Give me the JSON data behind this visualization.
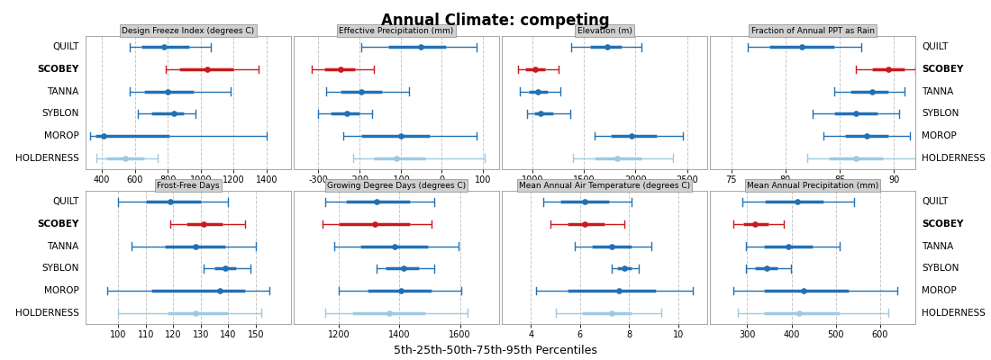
{
  "title": "Annual Climate: competing",
  "xlabel": "5th-25th-50th-75th-95th Percentiles",
  "sites": [
    "QUILT",
    "SCOBEY",
    "TANNA",
    "SYBLON",
    "MOROP",
    "HOLDERNESS"
  ],
  "site_bold": [
    false,
    true,
    false,
    false,
    false,
    false
  ],
  "panels": [
    {
      "title": "Design Freeze Index (degrees C)",
      "xlim": [
        300,
        1550
      ],
      "xticks": [
        400,
        600,
        800,
        1000,
        1200,
        1400
      ],
      "data": [
        {
          "p5": 570,
          "p25": 640,
          "p50": 780,
          "p75": 930,
          "p95": 1060
        },
        {
          "p5": 790,
          "p25": 870,
          "p50": 1040,
          "p75": 1200,
          "p95": 1350
        },
        {
          "p5": 570,
          "p25": 660,
          "p50": 800,
          "p75": 960,
          "p95": 1180
        },
        {
          "p5": 620,
          "p25": 700,
          "p50": 840,
          "p75": 900,
          "p95": 970
        },
        {
          "p5": 330,
          "p25": 365,
          "p50": 410,
          "p75": 810,
          "p95": 1400
        },
        {
          "p5": 370,
          "p25": 430,
          "p50": 545,
          "p75": 660,
          "p95": 740
        }
      ]
    },
    {
      "title": "Effective Precipitation (mm)",
      "xlim": [
        -360,
        140
      ],
      "xticks": [
        -300,
        -200,
        -100,
        0,
        100
      ],
      "data": [
        {
          "p5": -195,
          "p25": -130,
          "p50": -50,
          "p75": 10,
          "p95": 85
        },
        {
          "p5": -315,
          "p25": -285,
          "p50": -245,
          "p75": -210,
          "p95": -165
        },
        {
          "p5": -280,
          "p25": -245,
          "p50": -195,
          "p75": -145,
          "p95": -80
        },
        {
          "p5": -300,
          "p25": -270,
          "p50": -230,
          "p75": -200,
          "p95": -170
        },
        {
          "p5": -240,
          "p25": -195,
          "p50": -100,
          "p75": -30,
          "p95": 85
        },
        {
          "p5": -215,
          "p25": -165,
          "p50": -110,
          "p75": -40,
          "p95": 105
        }
      ]
    },
    {
      "title": "Elevation (m)",
      "xlim": [
        700,
        2700
      ],
      "xticks": [
        1000,
        1500,
        2000,
        2500
      ],
      "data": [
        {
          "p5": 1380,
          "p25": 1560,
          "p50": 1730,
          "p75": 1870,
          "p95": 2060
        },
        {
          "p5": 860,
          "p25": 935,
          "p50": 1025,
          "p75": 1120,
          "p95": 1250
        },
        {
          "p5": 875,
          "p25": 965,
          "p50": 1050,
          "p75": 1150,
          "p95": 1270
        },
        {
          "p5": 950,
          "p25": 1020,
          "p50": 1080,
          "p75": 1200,
          "p95": 1370
        },
        {
          "p5": 1600,
          "p25": 1760,
          "p50": 1960,
          "p75": 2210,
          "p95": 2460
        },
        {
          "p5": 1390,
          "p25": 1600,
          "p50": 1820,
          "p75": 2060,
          "p95": 2360
        }
      ]
    },
    {
      "title": "Fraction of Annual PPT as Rain",
      "xlim": [
        73,
        92
      ],
      "xticks": [
        75,
        80,
        85,
        90
      ],
      "data": [
        {
          "p5": 76.5,
          "p25": 78.5,
          "p50": 81.5,
          "p75": 84.5,
          "p95": 87.0
        },
        {
          "p5": 86.5,
          "p25": 88.0,
          "p50": 89.5,
          "p75": 91.0,
          "p95": 92.0
        },
        {
          "p5": 84.5,
          "p25": 86.0,
          "p50": 88.0,
          "p75": 89.5,
          "p95": 91.0
        },
        {
          "p5": 82.5,
          "p25": 84.5,
          "p50": 86.5,
          "p75": 88.5,
          "p95": 90.5
        },
        {
          "p5": 83.5,
          "p25": 85.5,
          "p50": 87.5,
          "p75": 89.5,
          "p95": 91.5
        },
        {
          "p5": 82.0,
          "p25": 84.0,
          "p50": 86.5,
          "p75": 89.0,
          "p95": 92.0
        }
      ]
    },
    {
      "title": "Frost-Free Days",
      "xlim": [
        88,
        163
      ],
      "xticks": [
        100,
        110,
        120,
        130,
        140,
        150
      ],
      "data": [
        {
          "p5": 100,
          "p25": 110,
          "p50": 119,
          "p75": 130,
          "p95": 140
        },
        {
          "p5": 119,
          "p25": 125,
          "p50": 131,
          "p75": 138,
          "p95": 146
        },
        {
          "p5": 105,
          "p25": 117,
          "p50": 128,
          "p75": 139,
          "p95": 150
        },
        {
          "p5": 131,
          "p25": 135,
          "p50": 139,
          "p75": 143,
          "p95": 148
        },
        {
          "p5": 96,
          "p25": 112,
          "p50": 137,
          "p75": 146,
          "p95": 155
        },
        {
          "p5": 100,
          "p25": 118,
          "p50": 128,
          "p75": 140,
          "p95": 152
        }
      ]
    },
    {
      "title": "Growing Degree Days (degrees C)",
      "xlim": [
        1050,
        1730
      ],
      "xticks": [
        1200,
        1400,
        1600
      ],
      "data": [
        {
          "p5": 1155,
          "p25": 1225,
          "p50": 1325,
          "p75": 1435,
          "p95": 1515
        },
        {
          "p5": 1145,
          "p25": 1200,
          "p50": 1320,
          "p75": 1435,
          "p95": 1505
        },
        {
          "p5": 1185,
          "p25": 1270,
          "p50": 1385,
          "p75": 1495,
          "p95": 1595
        },
        {
          "p5": 1325,
          "p25": 1355,
          "p50": 1415,
          "p75": 1465,
          "p95": 1515
        },
        {
          "p5": 1200,
          "p25": 1295,
          "p50": 1405,
          "p75": 1505,
          "p95": 1605
        },
        {
          "p5": 1155,
          "p25": 1245,
          "p50": 1365,
          "p75": 1485,
          "p95": 1625
        }
      ]
    },
    {
      "title": "Mean Annual Air Temperature (degrees C)",
      "xlim": [
        2.8,
        11.2
      ],
      "xticks": [
        4,
        6,
        8,
        10
      ],
      "data": [
        {
          "p5": 4.5,
          "p25": 5.2,
          "p50": 6.2,
          "p75": 7.2,
          "p95": 8.1
        },
        {
          "p5": 4.8,
          "p25": 5.5,
          "p50": 6.2,
          "p75": 7.0,
          "p95": 7.8
        },
        {
          "p5": 5.8,
          "p25": 6.5,
          "p50": 7.3,
          "p75": 8.1,
          "p95": 8.9
        },
        {
          "p5": 7.3,
          "p25": 7.5,
          "p50": 7.8,
          "p75": 8.1,
          "p95": 8.4
        },
        {
          "p5": 4.2,
          "p25": 5.5,
          "p50": 7.6,
          "p75": 9.1,
          "p95": 10.6
        },
        {
          "p5": 5.0,
          "p25": 6.1,
          "p50": 7.3,
          "p75": 8.1,
          "p95": 9.3
        }
      ]
    },
    {
      "title": "Mean Annual Precipitation (mm)",
      "xlim": [
        215,
        680
      ],
      "xticks": [
        300,
        400,
        500,
        600
      ],
      "data": [
        {
          "p5": 288,
          "p25": 340,
          "p50": 412,
          "p75": 472,
          "p95": 542
        },
        {
          "p5": 268,
          "p25": 292,
          "p50": 318,
          "p75": 348,
          "p95": 383
        },
        {
          "p5": 298,
          "p25": 338,
          "p50": 393,
          "p75": 448,
          "p95": 508
        },
        {
          "p5": 298,
          "p25": 318,
          "p50": 343,
          "p75": 368,
          "p95": 398
        },
        {
          "p5": 268,
          "p25": 338,
          "p50": 428,
          "p75": 528,
          "p95": 638
        },
        {
          "p5": 278,
          "p25": 338,
          "p50": 418,
          "p75": 508,
          "p95": 618
        }
      ]
    }
  ],
  "panel_header_color": "#d0d0d0",
  "plot_bg": "#ffffff",
  "grid_color": "#c8c8c8",
  "dark_blue": "#2171b5",
  "light_blue": "#9ecae1",
  "red": "#cb181d",
  "outer_bg": "#f0f0f0"
}
